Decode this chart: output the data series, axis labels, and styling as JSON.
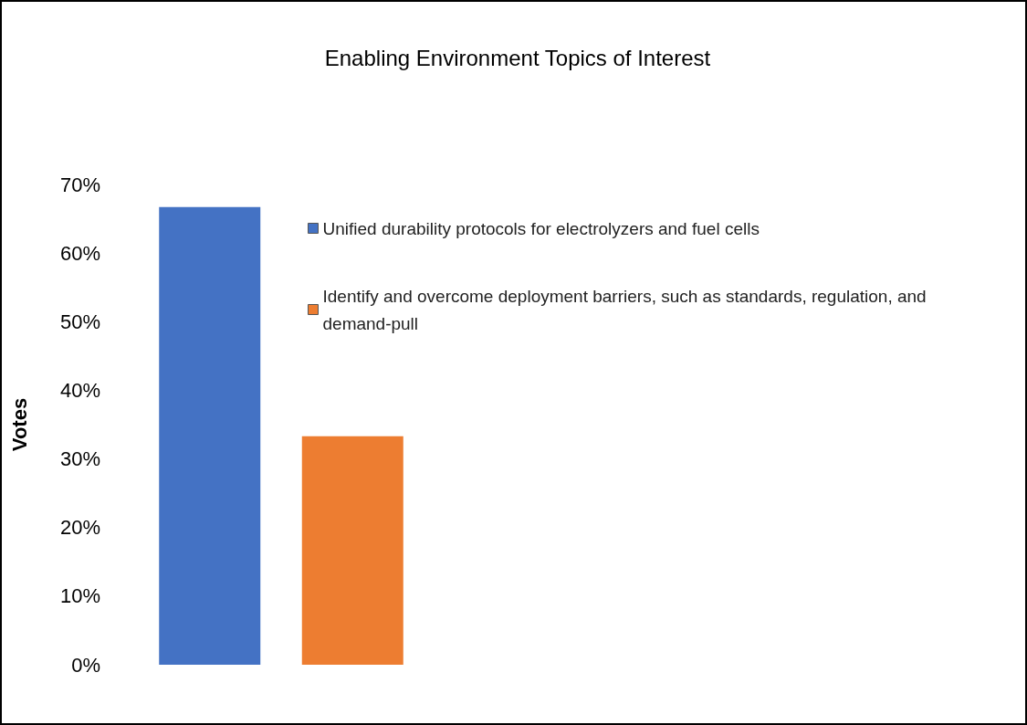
{
  "chart_data": {
    "type": "bar",
    "title": "Enabling Environment Topics of Interest",
    "ylabel": "Votes",
    "categories": [
      null
    ],
    "series": [
      {
        "name": "Unified durability protocols for electrolyzers and fuel cells",
        "color": "#4472c4",
        "values": [
          66.7
        ]
      },
      {
        "name": "Identify and overcome deployment barriers, such as standards, regulation, and demand-pull",
        "color": "#ed7d31",
        "values": [
          33.3
        ]
      }
    ],
    "ylim": [
      0,
      70
    ],
    "yticks": [
      {
        "value": 0,
        "label": "0%"
      },
      {
        "value": 10,
        "label": "10%"
      },
      {
        "value": 20,
        "label": "20%"
      },
      {
        "value": 30,
        "label": "30%"
      },
      {
        "value": 40,
        "label": "40%"
      },
      {
        "value": 50,
        "label": "50%"
      },
      {
        "value": 60,
        "label": "60%"
      },
      {
        "value": 70,
        "label": "70%"
      }
    ],
    "grid": false,
    "legend": "top right",
    "tick_labels": "y"
  }
}
